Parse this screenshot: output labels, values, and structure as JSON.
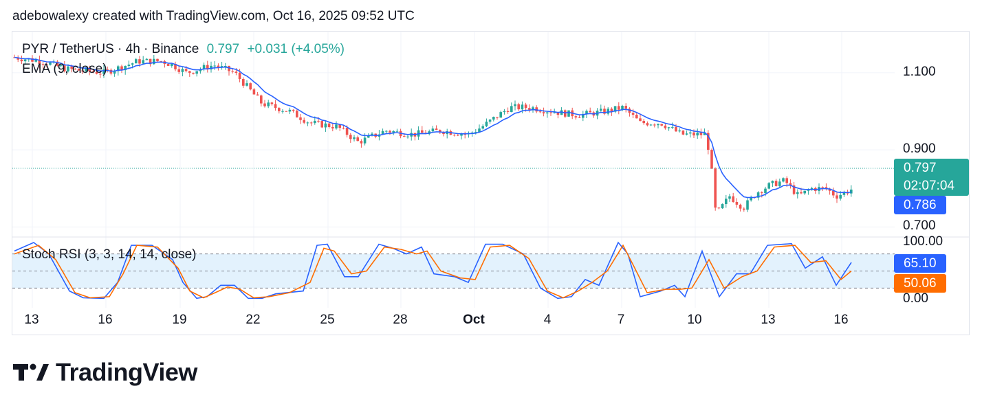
{
  "header": {
    "caption": "adebowalexy created with TradingView.com, Oct 16, 2025 09:52 UTC"
  },
  "legend": {
    "symbol": "PYR / TetherUS · 4h · Binance",
    "last": "0.797",
    "change": "+0.031 (+4.05%)",
    "ema_label": "EMA (9, close)",
    "stoch_label": "Stoch RSI (3, 3, 14, 14, close)"
  },
  "price_tags": {
    "last": "0.797",
    "countdown": "02:07:04",
    "ema": "0.786",
    "stoch_k": "65.10",
    "stoch_d": "50.06"
  },
  "brand": {
    "name": "TradingView",
    "icon": "tradingview-logo-icon"
  },
  "colors": {
    "up": "#26a69a",
    "down": "#ef5350",
    "ema": "#2962ff",
    "stoch_k": "#2962ff",
    "stoch_d": "#ff6d00",
    "stoch_band": "#e3f2fd"
  },
  "chart_data": [
    {
      "type": "candlestick",
      "title": "PYR / TetherUS · 4h · Binance",
      "timeframe": "4h",
      "x_ticks": [
        "13",
        "16",
        "19",
        "22",
        "25",
        "28",
        "Oct",
        "4",
        "7",
        "10",
        "13",
        "16"
      ],
      "y_ticks": [
        "1.100",
        "0.900",
        "0.700"
      ],
      "y_tick_values": [
        1.1,
        0.9,
        0.7
      ],
      "ylim": [
        0.69,
        1.18
      ],
      "grid": true,
      "last_price": 0.797,
      "ema": {
        "name": "EMA (9, close)",
        "last": 0.786
      },
      "anchors": [
        [
          0,
          1.11
        ],
        [
          20,
          1.14
        ],
        [
          60,
          1.13
        ],
        [
          95,
          1.11
        ],
        [
          150,
          1.1
        ],
        [
          200,
          1.13
        ],
        [
          235,
          1.13
        ],
        [
          250,
          1.12
        ],
        [
          270,
          1.1
        ],
        [
          310,
          1.12
        ],
        [
          340,
          1.1
        ],
        [
          360,
          1.06
        ],
        [
          380,
          1.02
        ],
        [
          420,
          1.0
        ],
        [
          450,
          0.97
        ],
        [
          490,
          0.96
        ],
        [
          520,
          0.92
        ],
        [
          560,
          0.95
        ],
        [
          600,
          0.94
        ],
        [
          640,
          0.95
        ],
        [
          680,
          0.94
        ],
        [
          700,
          0.96
        ],
        [
          740,
          1.01
        ],
        [
          770,
          1.01
        ],
        [
          800,
          1.0
        ],
        [
          840,
          0.99
        ],
        [
          880,
          1.0
        ],
        [
          905,
          1.01
        ],
        [
          930,
          0.97
        ],
        [
          960,
          0.97
        ],
        [
          990,
          0.94
        ],
        [
          1025,
          0.94
        ],
        [
          1032,
          0.88
        ],
        [
          1040,
          0.73
        ],
        [
          1060,
          0.78
        ],
        [
          1080,
          0.75
        ],
        [
          1100,
          0.79
        ],
        [
          1120,
          0.81
        ],
        [
          1140,
          0.82
        ],
        [
          1160,
          0.78
        ],
        [
          1180,
          0.8
        ],
        [
          1200,
          0.8
        ],
        [
          1215,
          0.78
        ],
        [
          1237,
          0.797
        ]
      ]
    },
    {
      "type": "line",
      "title": "Stoch RSI (3, 3, 14, 14, close)",
      "y_ticks": [
        "100.00",
        "0.00"
      ],
      "ylim": [
        0,
        100
      ],
      "bands": [
        80,
        50,
        20
      ],
      "series": [
        {
          "name": "K",
          "last": 65.1,
          "points": [
            [
              20,
              85
            ],
            [
              48,
              100
            ],
            [
              70,
              80
            ],
            [
              100,
              15
            ],
            [
              120,
              3
            ],
            [
              150,
              2
            ],
            [
              170,
              30
            ],
            [
              190,
              95
            ],
            [
              220,
              95
            ],
            [
              250,
              70
            ],
            [
              265,
              30
            ],
            [
              285,
              2
            ],
            [
              300,
              5
            ],
            [
              320,
              25
            ],
            [
              340,
              25
            ],
            [
              360,
              2
            ],
            [
              380,
              2
            ],
            [
              400,
              10
            ],
            [
              440,
              15
            ],
            [
              460,
              95
            ],
            [
              475,
              97
            ],
            [
              500,
              40
            ],
            [
              520,
              40
            ],
            [
              550,
              97
            ],
            [
              570,
              90
            ],
            [
              590,
              80
            ],
            [
              612,
              92
            ],
            [
              630,
              45
            ],
            [
              660,
              40
            ],
            [
              680,
              30
            ],
            [
              705,
              97
            ],
            [
              730,
              97
            ],
            [
              760,
              80
            ],
            [
              785,
              20
            ],
            [
              810,
              2
            ],
            [
              830,
              5
            ],
            [
              850,
              35
            ],
            [
              870,
              25
            ],
            [
              898,
              100
            ],
            [
              912,
              80
            ],
            [
              930,
              5
            ],
            [
              960,
              15
            ],
            [
              980,
              25
            ],
            [
              995,
              5
            ],
            [
              1020,
              85
            ],
            [
              1045,
              5
            ],
            [
              1070,
              45
            ],
            [
              1090,
              45
            ],
            [
              1115,
              95
            ],
            [
              1150,
              98
            ],
            [
              1170,
              55
            ],
            [
              1195,
              75
            ],
            [
              1215,
              25
            ],
            [
              1237,
              65.1
            ]
          ]
        },
        {
          "name": "D",
          "last": 50.06,
          "points": [
            [
              20,
              80
            ],
            [
              55,
              95
            ],
            [
              80,
              70
            ],
            [
              108,
              12
            ],
            [
              130,
              3
            ],
            [
              158,
              5
            ],
            [
              178,
              45
            ],
            [
              198,
              95
            ],
            [
              228,
              92
            ],
            [
              258,
              55
            ],
            [
              275,
              15
            ],
            [
              295,
              3
            ],
            [
              312,
              12
            ],
            [
              330,
              22
            ],
            [
              348,
              18
            ],
            [
              368,
              3
            ],
            [
              390,
              5
            ],
            [
              420,
              12
            ],
            [
              450,
              30
            ],
            [
              470,
              90
            ],
            [
              485,
              85
            ],
            [
              510,
              45
            ],
            [
              532,
              50
            ],
            [
              558,
              92
            ],
            [
              582,
              88
            ],
            [
              605,
              80
            ],
            [
              620,
              85
            ],
            [
              640,
              50
            ],
            [
              668,
              38
            ],
            [
              690,
              35
            ],
            [
              712,
              92
            ],
            [
              740,
              95
            ],
            [
              768,
              72
            ],
            [
              795,
              15
            ],
            [
              818,
              3
            ],
            [
              840,
              15
            ],
            [
              860,
              30
            ],
            [
              882,
              50
            ],
            [
              905,
              95
            ],
            [
              920,
              60
            ],
            [
              940,
              12
            ],
            [
              968,
              18
            ],
            [
              988,
              18
            ],
            [
              1005,
              20
            ],
            [
              1030,
              70
            ],
            [
              1052,
              20
            ],
            [
              1078,
              40
            ],
            [
              1100,
              50
            ],
            [
              1125,
              92
            ],
            [
              1155,
              95
            ],
            [
              1178,
              65
            ],
            [
              1200,
              68
            ],
            [
              1222,
              35
            ],
            [
              1237,
              50.06
            ]
          ]
        }
      ]
    }
  ]
}
